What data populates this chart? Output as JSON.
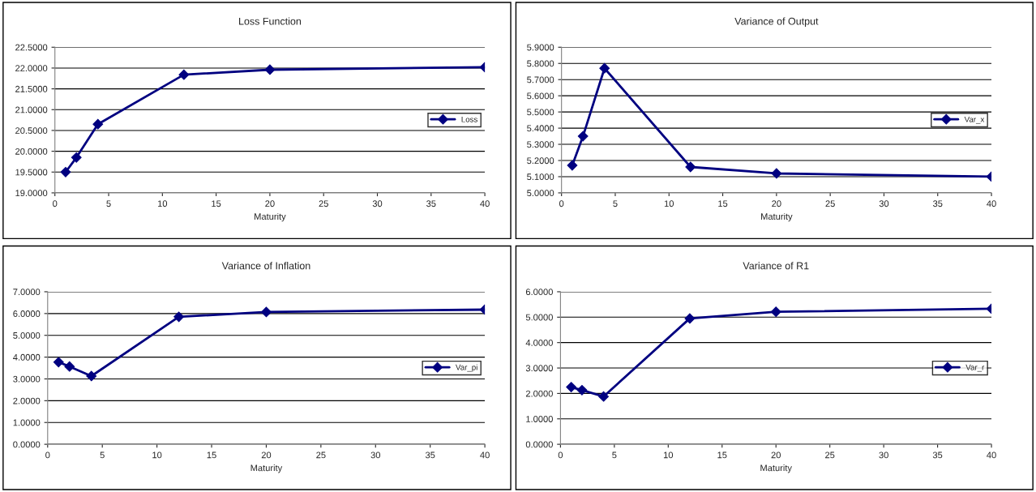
{
  "chart_data": [
    {
      "type": "line",
      "title": "Loss Function",
      "xlabel": "Maturity",
      "x": [
        1,
        2,
        4,
        12,
        20,
        40
      ],
      "series": [
        {
          "name": "Loss",
          "color": "#000080",
          "values": [
            19.5,
            19.85,
            20.65,
            21.84,
            21.96,
            22.02
          ]
        }
      ],
      "xlim": [
        0,
        40
      ],
      "xticks": [
        0,
        5,
        10,
        15,
        20,
        25,
        30,
        35,
        40
      ],
      "ylim": [
        19,
        22.5
      ],
      "yticks": [
        {
          "value": 19,
          "label": "19.0000"
        },
        {
          "value": 19.5,
          "label": "19.5000"
        },
        {
          "value": 20,
          "label": "20.0000"
        },
        {
          "value": 20.5,
          "label": "20.5000"
        },
        {
          "value": 21,
          "label": "21.0000"
        },
        {
          "value": 21.5,
          "label": "21.5000"
        },
        {
          "value": 22,
          "label": "22.0000"
        },
        {
          "value": 22.5,
          "label": "22.5000"
        }
      ],
      "grid": "y",
      "legend": "right",
      "marker": "diamond",
      "line_style": "solid"
    },
    {
      "type": "line",
      "title": "Variance of Output",
      "xlabel": "Maturity",
      "x": [
        1,
        2,
        4,
        12,
        20,
        40
      ],
      "series": [
        {
          "name": "Var_x",
          "color": "#000080",
          "values": [
            5.17,
            5.35,
            5.77,
            5.16,
            5.12,
            5.1
          ]
        }
      ],
      "xlim": [
        0,
        40
      ],
      "xticks": [
        0,
        5,
        10,
        15,
        20,
        25,
        30,
        35,
        40
      ],
      "ylim": [
        5.0,
        5.9
      ],
      "yticks": [
        {
          "value": 5.0,
          "label": "5.0000"
        },
        {
          "value": 5.1,
          "label": "5.1000"
        },
        {
          "value": 5.2,
          "label": "5.2000"
        },
        {
          "value": 5.3,
          "label": "5.3000"
        },
        {
          "value": 5.4,
          "label": "5.4000"
        },
        {
          "value": 5.5,
          "label": "5.5000"
        },
        {
          "value": 5.6,
          "label": "5.6000"
        },
        {
          "value": 5.7,
          "label": "5.7000"
        },
        {
          "value": 5.8,
          "label": "5.8000"
        },
        {
          "value": 5.9,
          "label": "5.9000"
        }
      ],
      "grid": "y",
      "legend": "right",
      "marker": "diamond",
      "line_style": "solid"
    },
    {
      "type": "line",
      "title": "Variance of Inflation",
      "xlabel": "Maturity",
      "x": [
        1,
        2,
        4,
        12,
        20,
        40
      ],
      "series": [
        {
          "name": "Var_pi",
          "color": "#000080",
          "values": [
            3.77,
            3.57,
            3.13,
            5.85,
            6.07,
            6.18
          ]
        }
      ],
      "xlim": [
        0,
        40
      ],
      "xticks": [
        0,
        5,
        10,
        15,
        20,
        25,
        30,
        35,
        40
      ],
      "ylim": [
        0,
        7
      ],
      "yticks": [
        {
          "value": 0,
          "label": "0.0000"
        },
        {
          "value": 1,
          "label": "1.0000"
        },
        {
          "value": 2,
          "label": "2.0000"
        },
        {
          "value": 3,
          "label": "3.0000"
        },
        {
          "value": 4,
          "label": "4.0000"
        },
        {
          "value": 5,
          "label": "5.0000"
        },
        {
          "value": 6,
          "label": "6.0000"
        },
        {
          "value": 7,
          "label": "7.0000"
        }
      ],
      "grid": "y",
      "legend": "right",
      "marker": "diamond",
      "line_style": "solid"
    },
    {
      "type": "line",
      "title": "Variance of R1",
      "xlabel": "Maturity",
      "x": [
        1,
        2,
        4,
        12,
        20,
        40
      ],
      "series": [
        {
          "name": "Var_r",
          "color": "#000080",
          "values": [
            2.25,
            2.13,
            1.88,
            4.95,
            5.21,
            5.33
          ]
        }
      ],
      "xlim": [
        0,
        40
      ],
      "xticks": [
        0,
        5,
        10,
        15,
        20,
        25,
        30,
        35,
        40
      ],
      "ylim": [
        0,
        6
      ],
      "yticks": [
        {
          "value": 0,
          "label": "0.0000"
        },
        {
          "value": 1,
          "label": "1.0000"
        },
        {
          "value": 2,
          "label": "2.0000"
        },
        {
          "value": 3,
          "label": "3.0000"
        },
        {
          "value": 4,
          "label": "4.0000"
        },
        {
          "value": 5,
          "label": "5.0000"
        },
        {
          "value": 6,
          "label": "6.0000"
        }
      ],
      "grid": "y",
      "legend": "right",
      "marker": "diamond",
      "line_style": "solid"
    }
  ]
}
